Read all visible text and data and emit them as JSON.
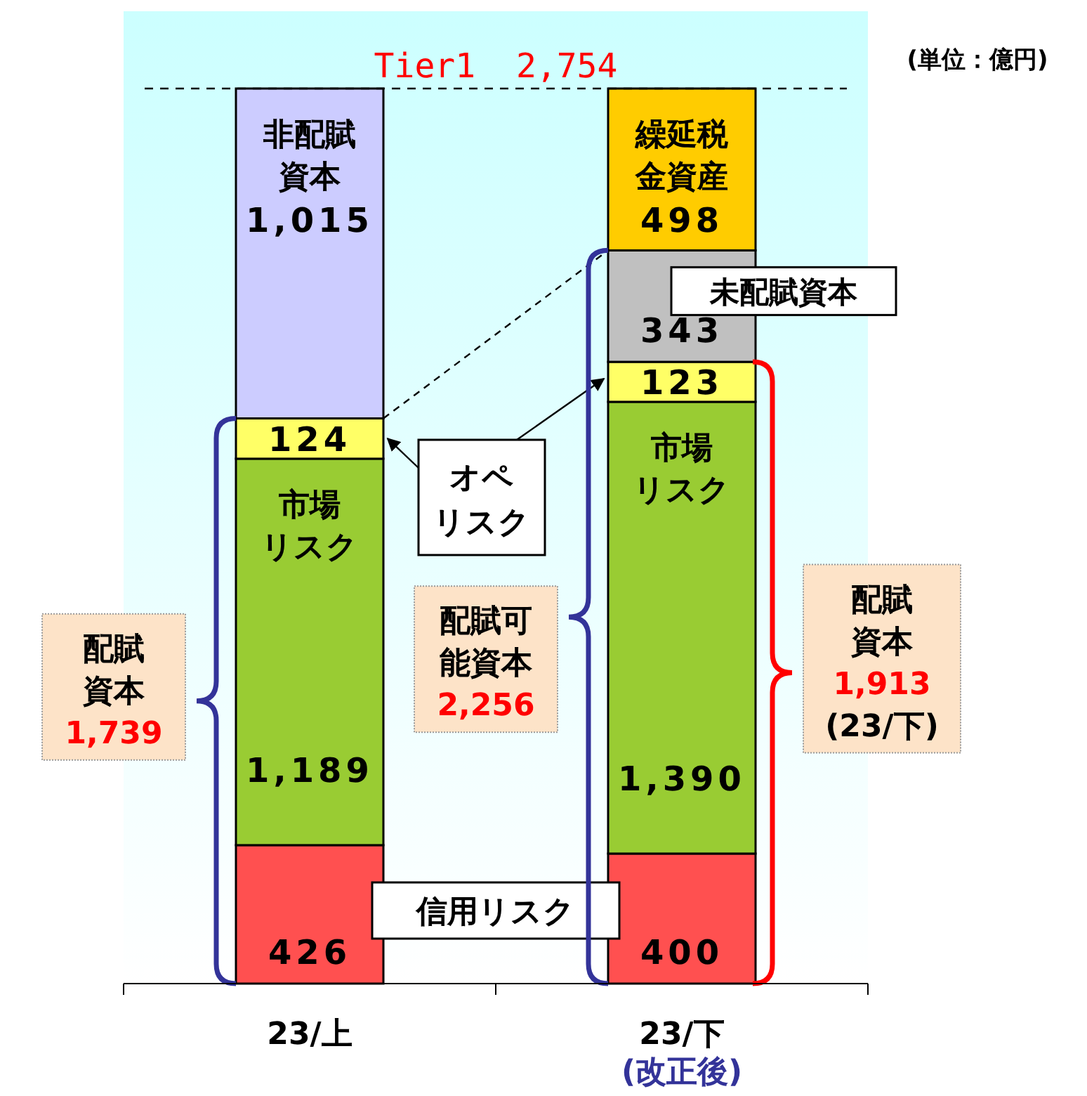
{
  "chart_data": {
    "type": "bar",
    "stacked": true,
    "categories": [
      "23/上",
      "23/下"
    ],
    "series": [
      {
        "name": "信用リスク",
        "color": "#ff5050",
        "values": [
          426,
          400
        ],
        "value_labels": [
          "426",
          "400"
        ]
      },
      {
        "name": "市場リスク",
        "color": "#99cc33",
        "values": [
          1189,
          1390
        ],
        "value_labels": [
          "1,189",
          "1,390"
        ]
      },
      {
        "name": "オペリスク",
        "color": "#ffff66",
        "values": [
          124,
          123
        ],
        "value_labels": [
          "124",
          "123"
        ]
      },
      {
        "name": "非配賦資本",
        "color": "#ccccff",
        "values": [
          1015,
          null
        ],
        "value_labels": [
          "1,015",
          null
        ]
      },
      {
        "name": "未配賦資本",
        "color": "#c0c0c0",
        "values": [
          null,
          343
        ],
        "value_labels": [
          null,
          "343"
        ]
      },
      {
        "name": "繰延税金資産",
        "color": "#ffcc00",
        "values": [
          null,
          498
        ],
        "value_labels": [
          null,
          "498"
        ]
      }
    ],
    "ref_lines": [
      {
        "axis": "y",
        "value": 2754,
        "label": "Tier1  2,754",
        "line_style": "dashed",
        "color": "#000000"
      }
    ],
    "annotations": [
      "(単位：億円)",
      "配賦資本\n1,739",
      "配賦可能資本\n2,256",
      "配賦資本\n1,913\n(23/下)",
      "(改正後)"
    ]
  }
}
